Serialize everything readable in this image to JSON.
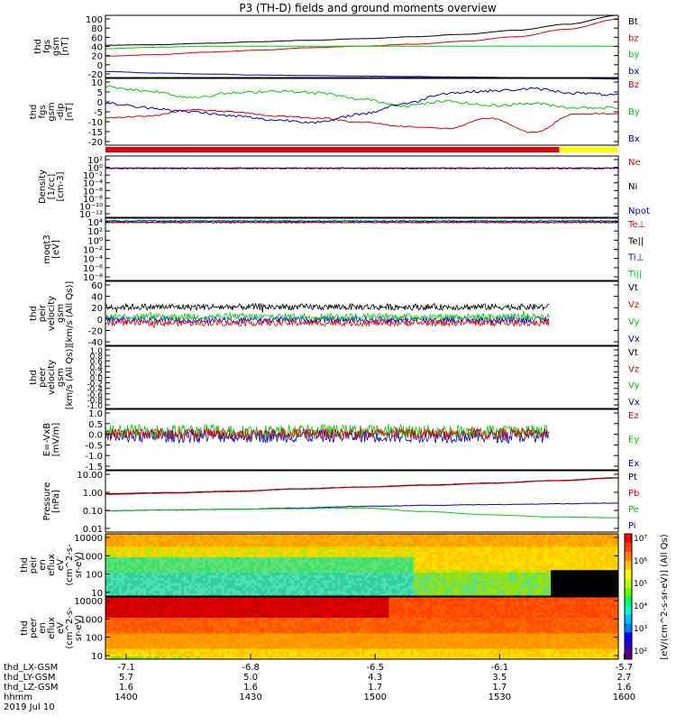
{
  "title": "P3 (TH-D) fields and ground moments overview",
  "colors": {
    "black": "#000000",
    "red": "#e00000",
    "green": "#00cc00",
    "blue": "#0000cc",
    "yellow": "#ffff00"
  },
  "panels": [
    {
      "id": "fgs1",
      "ylabel": [
        "thd",
        "fgs",
        "gsm",
        "[nT]"
      ],
      "ticks": [
        "100",
        "80",
        "60",
        "40",
        "20",
        "0",
        "-20"
      ],
      "legend": [
        {
          "text": "Bt",
          "color": "#000000"
        },
        {
          "text": "bz",
          "color": "#e00000"
        },
        {
          "text": "by",
          "color": "#00cc00"
        },
        {
          "text": "bx",
          "color": "#0000cc"
        }
      ]
    },
    {
      "id": "fgs2",
      "ylabel": [
        "thd",
        "fgs",
        "gsm",
        "-dip",
        "[nT]"
      ],
      "ticks": [
        "10",
        "5",
        "0",
        "-5",
        "-10",
        "-15",
        "-20"
      ],
      "legend": [
        {
          "text": "Bz",
          "color": "#e00000"
        },
        {
          "text": "By",
          "color": "#00cc00"
        },
        {
          "text": "Bx",
          "color": "#0000cc"
        }
      ]
    },
    {
      "id": "dens",
      "ylabel": [
        "Density",
        "[1/cc]",
        "[cm-3]"
      ],
      "ticks": [
        "10²",
        "10⁰",
        "10⁻²",
        "10⁻⁴",
        "10⁻⁶",
        "10⁻⁸",
        "10⁻¹⁰",
        "10⁻¹²"
      ],
      "legend": [
        {
          "text": "Ne",
          "color": "#e00000"
        },
        {
          "text": "Ni",
          "color": "#000000"
        },
        {
          "text": "Npot",
          "color": "#0000cc"
        }
      ]
    },
    {
      "id": "temp",
      "ylabel": [
        "moqt3",
        "[eV]"
      ],
      "ticks": [
        "10⁴",
        "10²",
        "10⁰",
        "10⁻²",
        "10⁻⁴",
        "10⁻⁶",
        "10⁻⁸"
      ],
      "legend": [
        {
          "text": "Te⊥",
          "color": "#e00000"
        },
        {
          "text": "Te||",
          "color": "#000000"
        },
        {
          "text": "Ti⊥",
          "color": "#0000cc"
        },
        {
          "text": "Ti||",
          "color": "#00cc00"
        }
      ]
    },
    {
      "id": "vi",
      "ylabel": [
        "thd",
        "peir",
        "velocity",
        "gsm",
        "[km/s (All Qs)]"
      ],
      "ticks": [
        "60",
        "40",
        "20",
        "0",
        "-20",
        "-40"
      ],
      "legend": [
        {
          "text": "Vt",
          "color": "#000000"
        },
        {
          "text": "Vz",
          "color": "#e00000"
        },
        {
          "text": "Vy",
          "color": "#00cc00"
        },
        {
          "text": "Vx",
          "color": "#0000cc"
        }
      ]
    },
    {
      "id": "ve",
      "ylabel": [
        "thd",
        "peer",
        "velocity",
        "gsm",
        "[km/s (All Qs)]"
      ],
      "ticks": [
        "1.0",
        "0.8",
        "0.6",
        "0.4",
        "0.2",
        "0.0",
        "-0.2",
        "-0.4",
        "-0.6",
        "-0.8",
        "-1.0"
      ],
      "legend": [
        {
          "text": "Vt",
          "color": "#000000"
        },
        {
          "text": "Vz",
          "color": "#e00000"
        },
        {
          "text": "Vy",
          "color": "#00cc00"
        },
        {
          "text": "Vx",
          "color": "#0000cc"
        }
      ]
    },
    {
      "id": "efield",
      "ylabel": [
        "E=-VxB",
        "[mV/m]"
      ],
      "ticks": [
        "1.0",
        "0.5",
        "0.0",
        "-0.5",
        "-1.0",
        "-1.5"
      ],
      "legend": [
        {
          "text": "Ez",
          "color": "#e00000"
        },
        {
          "text": "Ey",
          "color": "#00cc00"
        },
        {
          "text": "Ex",
          "color": "#0000cc"
        }
      ]
    },
    {
      "id": "press",
      "ylabel": [
        "Pressure",
        "[nPa]"
      ],
      "ticks": [
        "10.00",
        "1.00",
        "0.10",
        "0.01"
      ],
      "legend": [
        {
          "text": "Pt",
          "color": "#000000"
        },
        {
          "text": "Pb",
          "color": "#e00000"
        },
        {
          "text": "Pe",
          "color": "#00cc00"
        },
        {
          "text": "Pi",
          "color": "#0000cc"
        }
      ]
    },
    {
      "id": "ispec",
      "ylabel": [
        "thd",
        "peir",
        "en",
        "eflux",
        "eV",
        "(cm^2-s-",
        "sr-eV)"
      ],
      "ticks": [
        "10000",
        "1000",
        "100",
        "10"
      ]
    },
    {
      "id": "espec",
      "ylabel": [
        "thd",
        "peer",
        "en",
        "eflux",
        "eV",
        "(cm^2-s-",
        "sr-eV)"
      ],
      "ticks": [
        "10000",
        "1000",
        "100",
        "10"
      ]
    }
  ],
  "colorbar": {
    "label": "[eV/(cm^2-s-sr-eV)] (All Qs)",
    "ticks": [
      "10⁷",
      "10⁶",
      "10⁵",
      "10⁴",
      "10³",
      "10²"
    ]
  },
  "xaxis": {
    "rows": [
      {
        "label": "thd_LX-GSM",
        "values": [
          "-7.1",
          "-6.8",
          "-6.5",
          "-6.1",
          "-5.7"
        ]
      },
      {
        "label": "thd_LY-GSM",
        "values": [
          "5.7",
          "5.0",
          "4.3",
          "3.5",
          "2.7"
        ]
      },
      {
        "label": "thd_LZ-GSM",
        "values": [
          "1.6",
          "1.6",
          "1.7",
          "1.7",
          "1.6"
        ]
      },
      {
        "label": "hhmm",
        "values": [
          "1400",
          "1430",
          "1500",
          "1530",
          "1600"
        ]
      }
    ],
    "date": "2019 Jul 10"
  },
  "chart_data": [
    {
      "type": "line",
      "title": "P3 (TH-D) fields and ground moments overview",
      "ylabel": "thd fgs gsm [nT]",
      "x": [
        "1400",
        "1430",
        "1500",
        "1530",
        "1600"
      ],
      "ylim": [
        -25,
        100
      ],
      "series": [
        {
          "name": "Bt",
          "values": [
            40,
            44,
            50,
            60,
            100
          ]
        },
        {
          "name": "bz",
          "values": [
            18,
            28,
            38,
            52,
            90
          ]
        },
        {
          "name": "by",
          "values": [
            33,
            38,
            38,
            38,
            38
          ]
        },
        {
          "name": "bx",
          "values": [
            -15,
            -20,
            -22,
            -25,
            -28
          ]
        }
      ]
    },
    {
      "type": "line",
      "ylabel": "thd fgs gsm-dip [nT]",
      "x": [
        "1400",
        "1430",
        "1500",
        "1530",
        "1600"
      ],
      "ylim": [
        -22,
        10
      ],
      "series": [
        {
          "name": "Bz",
          "values": [
            -10,
            -5,
            -9,
            -14,
            -7
          ]
        },
        {
          "name": "By",
          "values": [
            6,
            2,
            4,
            -3,
            -5
          ]
        },
        {
          "name": "Bx",
          "values": [
            -2,
            -8,
            -11,
            3,
            2
          ]
        }
      ]
    },
    {
      "type": "line",
      "ylabel": "Density [1/cc] [cm-3]",
      "log": true,
      "x": [
        "1400",
        "1430",
        "1500",
        "1530",
        "1600"
      ],
      "series": [
        {
          "name": "Ne",
          "values": [
            0.5,
            0.5,
            0.5,
            0.5,
            0.5
          ]
        },
        {
          "name": "Ni",
          "values": [
            0.5,
            0.5,
            0.5,
            0.5,
            0.5
          ]
        },
        {
          "name": "Npot",
          "values": [
            0.5,
            0.5,
            0.5,
            0.5,
            0.5
          ]
        }
      ]
    },
    {
      "type": "line",
      "ylabel": "moqt3 [eV]",
      "log": true,
      "x": [
        "1400",
        "1430",
        "1500",
        "1530",
        "1600"
      ],
      "series": [
        {
          "name": "Te⊥",
          "values": [
            3000,
            3000,
            3000,
            3000,
            3000
          ]
        },
        {
          "name": "Te||",
          "values": [
            3000,
            3000,
            3000,
            3000,
            3000
          ]
        },
        {
          "name": "Ti⊥",
          "values": [
            6000,
            6000,
            6000,
            6000,
            6000
          ]
        },
        {
          "name": "Ti||",
          "values": [
            6000,
            6000,
            6000,
            6000,
            6000
          ]
        }
      ]
    },
    {
      "type": "line",
      "ylabel": "thd peir velocity gsm [km/s (All Qs)]",
      "x": [
        "1400",
        "1430",
        "1500",
        "1530",
        "1600"
      ],
      "ylim": [
        -40,
        60
      ],
      "series": [
        {
          "name": "Vt",
          "values": [
            20,
            22,
            20,
            20,
            20
          ]
        },
        {
          "name": "Vz",
          "values": [
            -5,
            -5,
            -5,
            -8,
            -8
          ]
        },
        {
          "name": "Vy",
          "values": [
            5,
            5,
            5,
            5,
            5
          ]
        },
        {
          "name": "Vx",
          "values": [
            0,
            0,
            0,
            0,
            0
          ]
        }
      ]
    },
    {
      "type": "line",
      "ylabel": "thd peer velocity gsm [km/s (All Qs)]",
      "x": [
        "1400",
        "1430",
        "1500",
        "1530",
        "1600"
      ],
      "ylim": [
        -1,
        1
      ],
      "series": []
    },
    {
      "type": "line",
      "ylabel": "E=-VxB [mV/m]",
      "x": [
        "1400",
        "1430",
        "1500",
        "1530",
        "1600"
      ],
      "ylim": [
        -1.5,
        1
      ],
      "series": [
        {
          "name": "Ez",
          "values": [
            0,
            0,
            0,
            0,
            0
          ]
        },
        {
          "name": "Ey",
          "values": [
            0.1,
            0.1,
            0.1,
            0.1,
            0.1
          ]
        },
        {
          "name": "Ex",
          "values": [
            -0.1,
            -0.1,
            -0.2,
            -0.4,
            -0.3
          ]
        }
      ]
    },
    {
      "type": "line",
      "ylabel": "Pressure [nPa]",
      "log": true,
      "x": [
        "1400",
        "1430",
        "1500",
        "1530",
        "1600"
      ],
      "ylim": [
        0.01,
        10
      ],
      "series": [
        {
          "name": "Pt",
          "values": [
            0.8,
            1.0,
            1.6,
            2.5,
            4.5
          ]
        },
        {
          "name": "Pb",
          "values": [
            0.7,
            0.95,
            1.5,
            2.4,
            4.3
          ]
        },
        {
          "name": "Pe",
          "values": [
            0.12,
            0.13,
            0.15,
            0.06,
            0.045
          ]
        },
        {
          "name": "Pi",
          "values": [
            0.12,
            0.14,
            0.18,
            0.22,
            0.25
          ]
        }
      ]
    },
    {
      "type": "heatmap",
      "ylabel": "thd peir en eflux eV (cm^2-s-sr-eV)",
      "log": true,
      "ylim": [
        5,
        20000
      ]
    },
    {
      "type": "heatmap",
      "ylabel": "thd peer en eflux eV (cm^2-s-sr-eV)",
      "log": true,
      "ylim": [
        5,
        20000
      ]
    }
  ]
}
